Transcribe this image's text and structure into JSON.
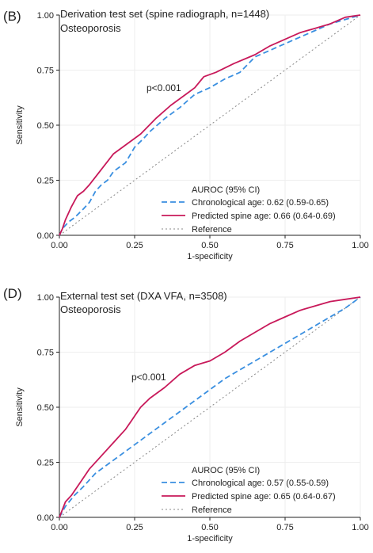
{
  "chart_data": [
    {
      "type": "line",
      "panel_label": "(B)",
      "title": "Derivation test set (spine radiograph, n=1448)",
      "subtitle": "Osteoporosis",
      "xlabel": "1-specificity",
      "ylabel": "Sensitivity",
      "xlim": [
        0,
        1
      ],
      "ylim": [
        0,
        1
      ],
      "xticks": [
        "0.00",
        "0.25",
        "0.50",
        "0.75",
        "1.00"
      ],
      "yticks": [
        "0.00",
        "0.25",
        "0.50",
        "0.75",
        "1.00"
      ],
      "grid": true,
      "annotation": "p<0.001",
      "legend_title": "AUROC (95% CI)",
      "legend_position": "bottom-right",
      "series": [
        {
          "name": "Chronological age: 0.62 (0.59-0.65)",
          "color": "#3a8fe0",
          "style": "dashed",
          "x": [
            0,
            0.01,
            0.03,
            0.05,
            0.08,
            0.1,
            0.12,
            0.14,
            0.16,
            0.18,
            0.22,
            0.25,
            0.28,
            0.3,
            0.35,
            0.4,
            0.45,
            0.5,
            0.55,
            0.6,
            0.65,
            0.7,
            0.75,
            0.8,
            0.85,
            0.9,
            0.95,
            1.0
          ],
          "y": [
            0,
            0.03,
            0.06,
            0.08,
            0.12,
            0.15,
            0.2,
            0.23,
            0.25,
            0.29,
            0.33,
            0.4,
            0.44,
            0.47,
            0.53,
            0.58,
            0.64,
            0.67,
            0.71,
            0.74,
            0.81,
            0.84,
            0.87,
            0.9,
            0.93,
            0.96,
            0.98,
            1.0
          ]
        },
        {
          "name": "Predicted spine age: 0.66 (0.64-0.69)",
          "color": "#c8195a",
          "style": "solid",
          "x": [
            0,
            0.01,
            0.02,
            0.04,
            0.06,
            0.08,
            0.1,
            0.14,
            0.18,
            0.22,
            0.27,
            0.32,
            0.37,
            0.42,
            0.45,
            0.48,
            0.52,
            0.58,
            0.65,
            0.7,
            0.75,
            0.8,
            0.85,
            0.9,
            0.95,
            1.0
          ],
          "y": [
            0,
            0.03,
            0.07,
            0.13,
            0.18,
            0.2,
            0.23,
            0.3,
            0.37,
            0.41,
            0.46,
            0.53,
            0.59,
            0.64,
            0.67,
            0.72,
            0.74,
            0.78,
            0.82,
            0.86,
            0.89,
            0.92,
            0.94,
            0.96,
            0.99,
            1.0
          ]
        },
        {
          "name": "Reference",
          "color": "#888888",
          "style": "dotted",
          "x": [
            0,
            1
          ],
          "y": [
            0,
            1
          ]
        }
      ]
    },
    {
      "type": "line",
      "panel_label": "(D)",
      "title": "External test set (DXA VFA, n=3508)",
      "subtitle": "Osteoporosis",
      "xlabel": "1-specificity",
      "ylabel": "Sensitivity",
      "xlim": [
        0,
        1
      ],
      "ylim": [
        0,
        1
      ],
      "xticks": [
        "0.00",
        "0.25",
        "0.50",
        "0.75",
        "1.00"
      ],
      "yticks": [
        "0.00",
        "0.25",
        "0.50",
        "0.75",
        "1.00"
      ],
      "grid": true,
      "annotation": "p<0.001",
      "legend_title": "AUROC (95% CI)",
      "legend_position": "bottom-right",
      "series": [
        {
          "name": "Chronological age: 0.57 (0.55-0.59)",
          "color": "#3a8fe0",
          "style": "dashed",
          "x": [
            0,
            0.02,
            0.05,
            0.08,
            0.1,
            0.12,
            0.15,
            0.2,
            0.25,
            0.3,
            0.35,
            0.4,
            0.45,
            0.5,
            0.55,
            0.6,
            0.65,
            0.7,
            0.75,
            0.8,
            0.85,
            0.9,
            0.95,
            1.0
          ],
          "y": [
            0,
            0.05,
            0.1,
            0.14,
            0.17,
            0.2,
            0.23,
            0.28,
            0.33,
            0.38,
            0.43,
            0.48,
            0.53,
            0.58,
            0.63,
            0.67,
            0.71,
            0.75,
            0.79,
            0.83,
            0.87,
            0.91,
            0.95,
            1.0
          ]
        },
        {
          "name": "Predicted spine age: 0.65 (0.64-0.67)",
          "color": "#c8195a",
          "style": "solid",
          "x": [
            0,
            0.02,
            0.04,
            0.06,
            0.08,
            0.1,
            0.14,
            0.18,
            0.22,
            0.24,
            0.25,
            0.27,
            0.3,
            0.35,
            0.4,
            0.45,
            0.5,
            0.55,
            0.6,
            0.65,
            0.7,
            0.75,
            0.8,
            0.85,
            0.9,
            0.95,
            1.0
          ],
          "y": [
            0,
            0.07,
            0.1,
            0.14,
            0.18,
            0.22,
            0.28,
            0.34,
            0.4,
            0.44,
            0.46,
            0.5,
            0.54,
            0.59,
            0.65,
            0.69,
            0.71,
            0.75,
            0.8,
            0.84,
            0.88,
            0.91,
            0.94,
            0.96,
            0.98,
            0.99,
            1.0
          ]
        },
        {
          "name": "Reference",
          "color": "#888888",
          "style": "dotted",
          "x": [
            0,
            1
          ],
          "y": [
            0,
            1
          ]
        }
      ]
    }
  ]
}
